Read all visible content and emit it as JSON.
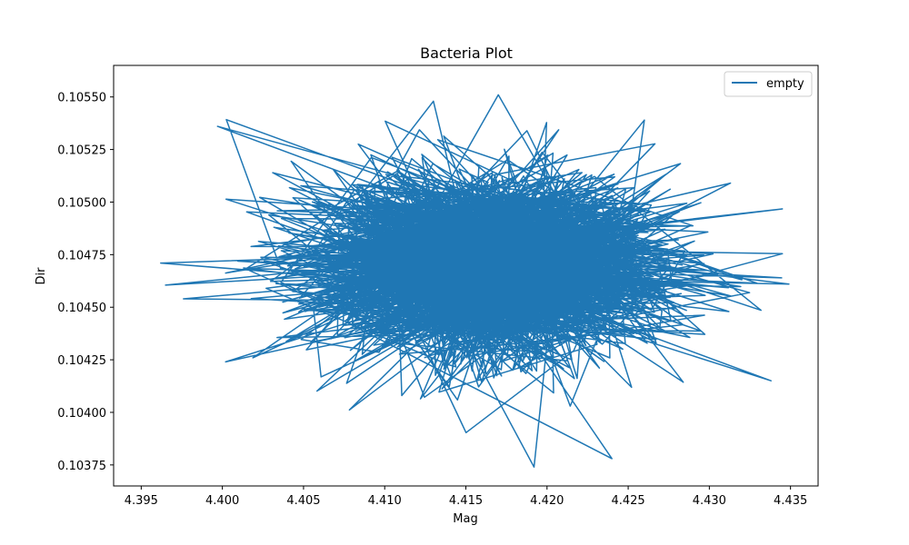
{
  "chart_data": {
    "type": "line",
    "title": "Bacteria Plot",
    "xlabel": "Mag",
    "ylabel": "Dir",
    "xlim": [
      4.3933,
      4.4367
    ],
    "ylim": [
      0.10365,
      0.10565
    ],
    "xticks": [
      4.395,
      4.4,
      4.405,
      4.41,
      4.415,
      4.42,
      4.425,
      4.43,
      4.435
    ],
    "xtick_labels": [
      "4.395",
      "4.400",
      "4.405",
      "4.410",
      "4.415",
      "4.420",
      "4.425",
      "4.430",
      "4.435"
    ],
    "yticks": [
      0.10375,
      0.104,
      0.10425,
      0.1045,
      0.10475,
      0.105,
      0.10525,
      0.1055
    ],
    "ytick_labels": [
      "0.10375",
      "0.10400",
      "0.10425",
      "0.10450",
      "0.10475",
      "0.10500",
      "0.10525",
      "0.10550"
    ],
    "grid": false,
    "legend": {
      "placement": "top-right"
    },
    "series": [
      {
        "name": "empty",
        "color": "#1f77b4",
        "sample_count": 2400,
        "center": [
          4.4165,
          0.104695
        ],
        "spread": [
          0.0055,
          0.00022
        ],
        "slope": -9.5e-06,
        "extremes": [
          [
            4.3962,
            0.10471
          ],
          [
            4.4349,
            0.10461
          ],
          [
            4.4192,
            0.10374
          ],
          [
            4.417,
            0.10551
          ],
          [
            4.3997,
            0.10536
          ],
          [
            4.4338,
            0.10415
          ],
          [
            4.3976,
            0.10454
          ],
          [
            4.4313,
            0.10509
          ],
          [
            4.4002,
            0.10424
          ],
          [
            4.426,
            0.10539
          ],
          [
            4.413,
            0.10548
          ],
          [
            4.424,
            0.10378
          ]
        ]
      }
    ]
  }
}
